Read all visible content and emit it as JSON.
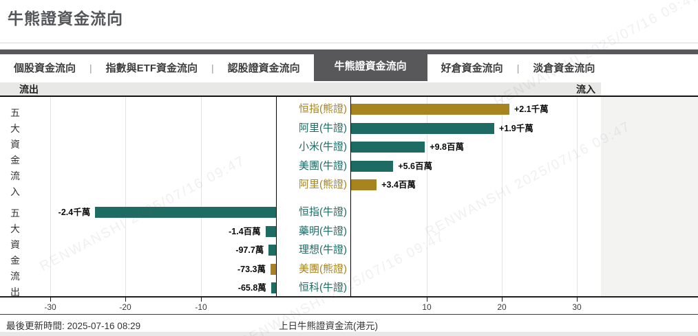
{
  "page": {
    "title": "牛熊證資金流向",
    "watermark": "RENWANSHI 2025/07/16 09:47",
    "footer": {
      "updated": "最後更新時間: 2025-07-16 08:29",
      "axis_caption": "上日牛熊證資金流(港元)"
    }
  },
  "tabs": {
    "items": [
      {
        "label": "個股資金流向",
        "active": false
      },
      {
        "label": "指數與ETF資金流向",
        "active": false
      },
      {
        "label": "認股證資金流向",
        "active": false
      },
      {
        "label": "牛熊證資金流向",
        "active": true
      },
      {
        "label": "好倉資金流向",
        "active": false
      },
      {
        "label": "淡倉資金流向",
        "active": false
      }
    ]
  },
  "flow_header": {
    "outflow": "流出",
    "inflow": "流入"
  },
  "colors": {
    "bull": "#1e6b63",
    "bear": "#a6841f",
    "active_tab_bg": "#58585a",
    "header_bar_bg": "#e8e8e7"
  },
  "chart_data": {
    "type": "bar",
    "orientation": "horizontal",
    "title": "上日牛熊證資金流(港元)",
    "unit_of_axis": "百萬港元",
    "xlim": [
      -33.3,
      33.2
    ],
    "ticks": [
      -30,
      -20,
      -10,
      10,
      20,
      30
    ],
    "grid": true,
    "section_labels": {
      "inflow": "五大資金流入",
      "outflow": "五大資金流出"
    },
    "rows": [
      {
        "name": "恒指",
        "kind": "熊證",
        "group": "inflow",
        "value_millions": 21,
        "value_label": "+2.1千萬"
      },
      {
        "name": "阿里",
        "kind": "牛證",
        "group": "inflow",
        "value_millions": 19,
        "value_label": "+1.9千萬"
      },
      {
        "name": "小米",
        "kind": "牛證",
        "group": "inflow",
        "value_millions": 9.8,
        "value_label": "+9.8百萬"
      },
      {
        "name": "美團",
        "kind": "牛證",
        "group": "inflow",
        "value_millions": 5.6,
        "value_label": "+5.6百萬"
      },
      {
        "name": "阿里",
        "kind": "熊證",
        "group": "inflow",
        "value_millions": 3.4,
        "value_label": "+3.4百萬"
      },
      {
        "name": "恒指",
        "kind": "牛證",
        "group": "outflow",
        "value_millions": -24,
        "value_label": "-2.4千萬"
      },
      {
        "name": "藥明",
        "kind": "牛證",
        "group": "outflow",
        "value_millions": -1.4,
        "value_label": "-1.4百萬"
      },
      {
        "name": "理想",
        "kind": "牛證",
        "group": "outflow",
        "value_millions": -0.977,
        "value_label": "-97.7萬"
      },
      {
        "name": "美團",
        "kind": "熊證",
        "group": "outflow",
        "value_millions": -0.733,
        "value_label": "-73.3萬"
      },
      {
        "name": "恒科",
        "kind": "牛證",
        "group": "outflow",
        "value_millions": -0.658,
        "value_label": "-65.8萬"
      }
    ]
  }
}
